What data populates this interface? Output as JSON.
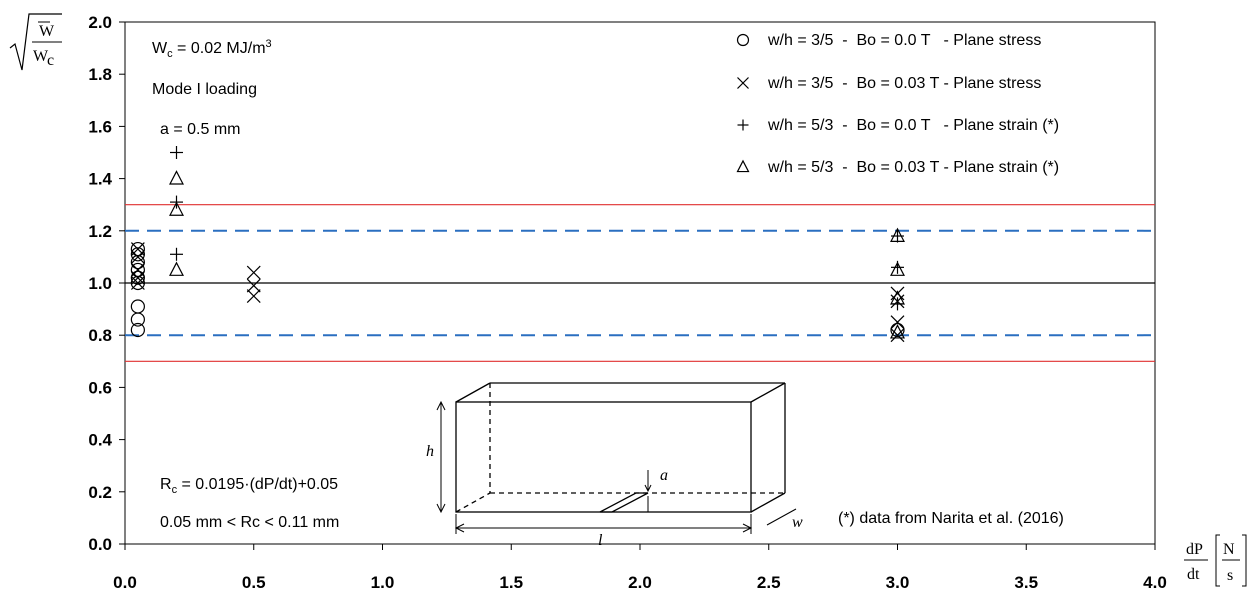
{
  "chart_data": {
    "type": "scatter",
    "xlim": [
      0.0,
      4.0
    ],
    "ylim": [
      0.0,
      2.0
    ],
    "x_ticks": [
      "0.0",
      "0.5",
      "1.0",
      "1.5",
      "2.0",
      "2.5",
      "3.0",
      "3.5",
      "4.0"
    ],
    "y_ticks": [
      "0.0",
      "0.2",
      "0.4",
      "0.6",
      "0.8",
      "1.0",
      "1.2",
      "1.4",
      "1.6",
      "1.8",
      "2.0"
    ],
    "grid": false,
    "legend_position": "top-right",
    "y_axis_label": {
      "W": "W",
      "Wc": "W",
      "Wc_sub": "c"
    },
    "x_axis_label": {
      "num": "dP",
      "den": "dt",
      "unit_num": "N",
      "unit_den": "s"
    },
    "reference_lines": [
      {
        "y": 1.3,
        "color": "#e03030",
        "style": "solid"
      },
      {
        "y": 0.7,
        "color": "#e03030",
        "style": "solid"
      },
      {
        "y": 1.2,
        "color": "#2a6fc0",
        "style": "dashed"
      },
      {
        "y": 0.8,
        "color": "#2a6fc0",
        "style": "dashed"
      },
      {
        "y": 1.0,
        "color": "#000000",
        "style": "solid"
      }
    ],
    "series": [
      {
        "name": "w/h = 3/5  -  Bo = 0.0 T   - Plane stress",
        "marker": "circle",
        "points": [
          [
            0.05,
            1.13
          ],
          [
            0.05,
            1.11
          ],
          [
            0.05,
            1.08
          ],
          [
            0.05,
            1.05
          ],
          [
            0.05,
            1.02
          ],
          [
            0.05,
            1.0
          ],
          [
            0.05,
            0.91
          ],
          [
            0.05,
            0.86
          ],
          [
            0.05,
            0.82
          ],
          [
            3.0,
            0.82
          ]
        ]
      },
      {
        "name": "w/h = 3/5  -  Bo = 0.03 T - Plane stress",
        "marker": "x",
        "points": [
          [
            0.05,
            1.13
          ],
          [
            0.05,
            1.1
          ],
          [
            0.05,
            1.05
          ],
          [
            0.05,
            1.02
          ],
          [
            0.05,
            1.0
          ],
          [
            0.5,
            1.04
          ],
          [
            0.5,
            0.99
          ],
          [
            0.5,
            0.95
          ],
          [
            3.0,
            0.96
          ],
          [
            3.0,
            0.93
          ],
          [
            3.0,
            0.85
          ],
          [
            3.0,
            0.8
          ]
        ]
      },
      {
        "name": "w/h = 5/3  -  Bo = 0.0 T   - Plane strain (*)",
        "marker": "plus",
        "points": [
          [
            0.2,
            1.5
          ],
          [
            0.2,
            1.31
          ],
          [
            0.2,
            1.11
          ],
          [
            3.0,
            1.18
          ],
          [
            3.0,
            1.06
          ],
          [
            3.0,
            0.92
          ]
        ]
      },
      {
        "name": "w/h = 5/3  -  Bo = 0.03 T - Plane strain (*)",
        "marker": "triangle",
        "points": [
          [
            0.2,
            1.4
          ],
          [
            0.2,
            1.28
          ],
          [
            0.2,
            1.05
          ],
          [
            3.0,
            1.18
          ],
          [
            3.0,
            1.05
          ],
          [
            3.0,
            0.94
          ],
          [
            3.0,
            0.81
          ]
        ]
      }
    ]
  },
  "annotations": {
    "wc_value": "W",
    "wc_sub": "c",
    "wc_rest": " = 0.02 MJ/m",
    "wc_sup": "3",
    "mode": "Mode I loading",
    "a_value": "a = 0.5 mm",
    "rc_main": "R",
    "rc_sub": "c",
    "rc_rest": " = 0.0195·(dP/dt)+0.05",
    "rc_range": "0.05 mm < Rc < 0.11 mm",
    "source": "(*) data from Narita et al. (2016)"
  },
  "inset": {
    "label_h": "h",
    "label_a": "a",
    "label_l": "l",
    "label_w": "w"
  }
}
